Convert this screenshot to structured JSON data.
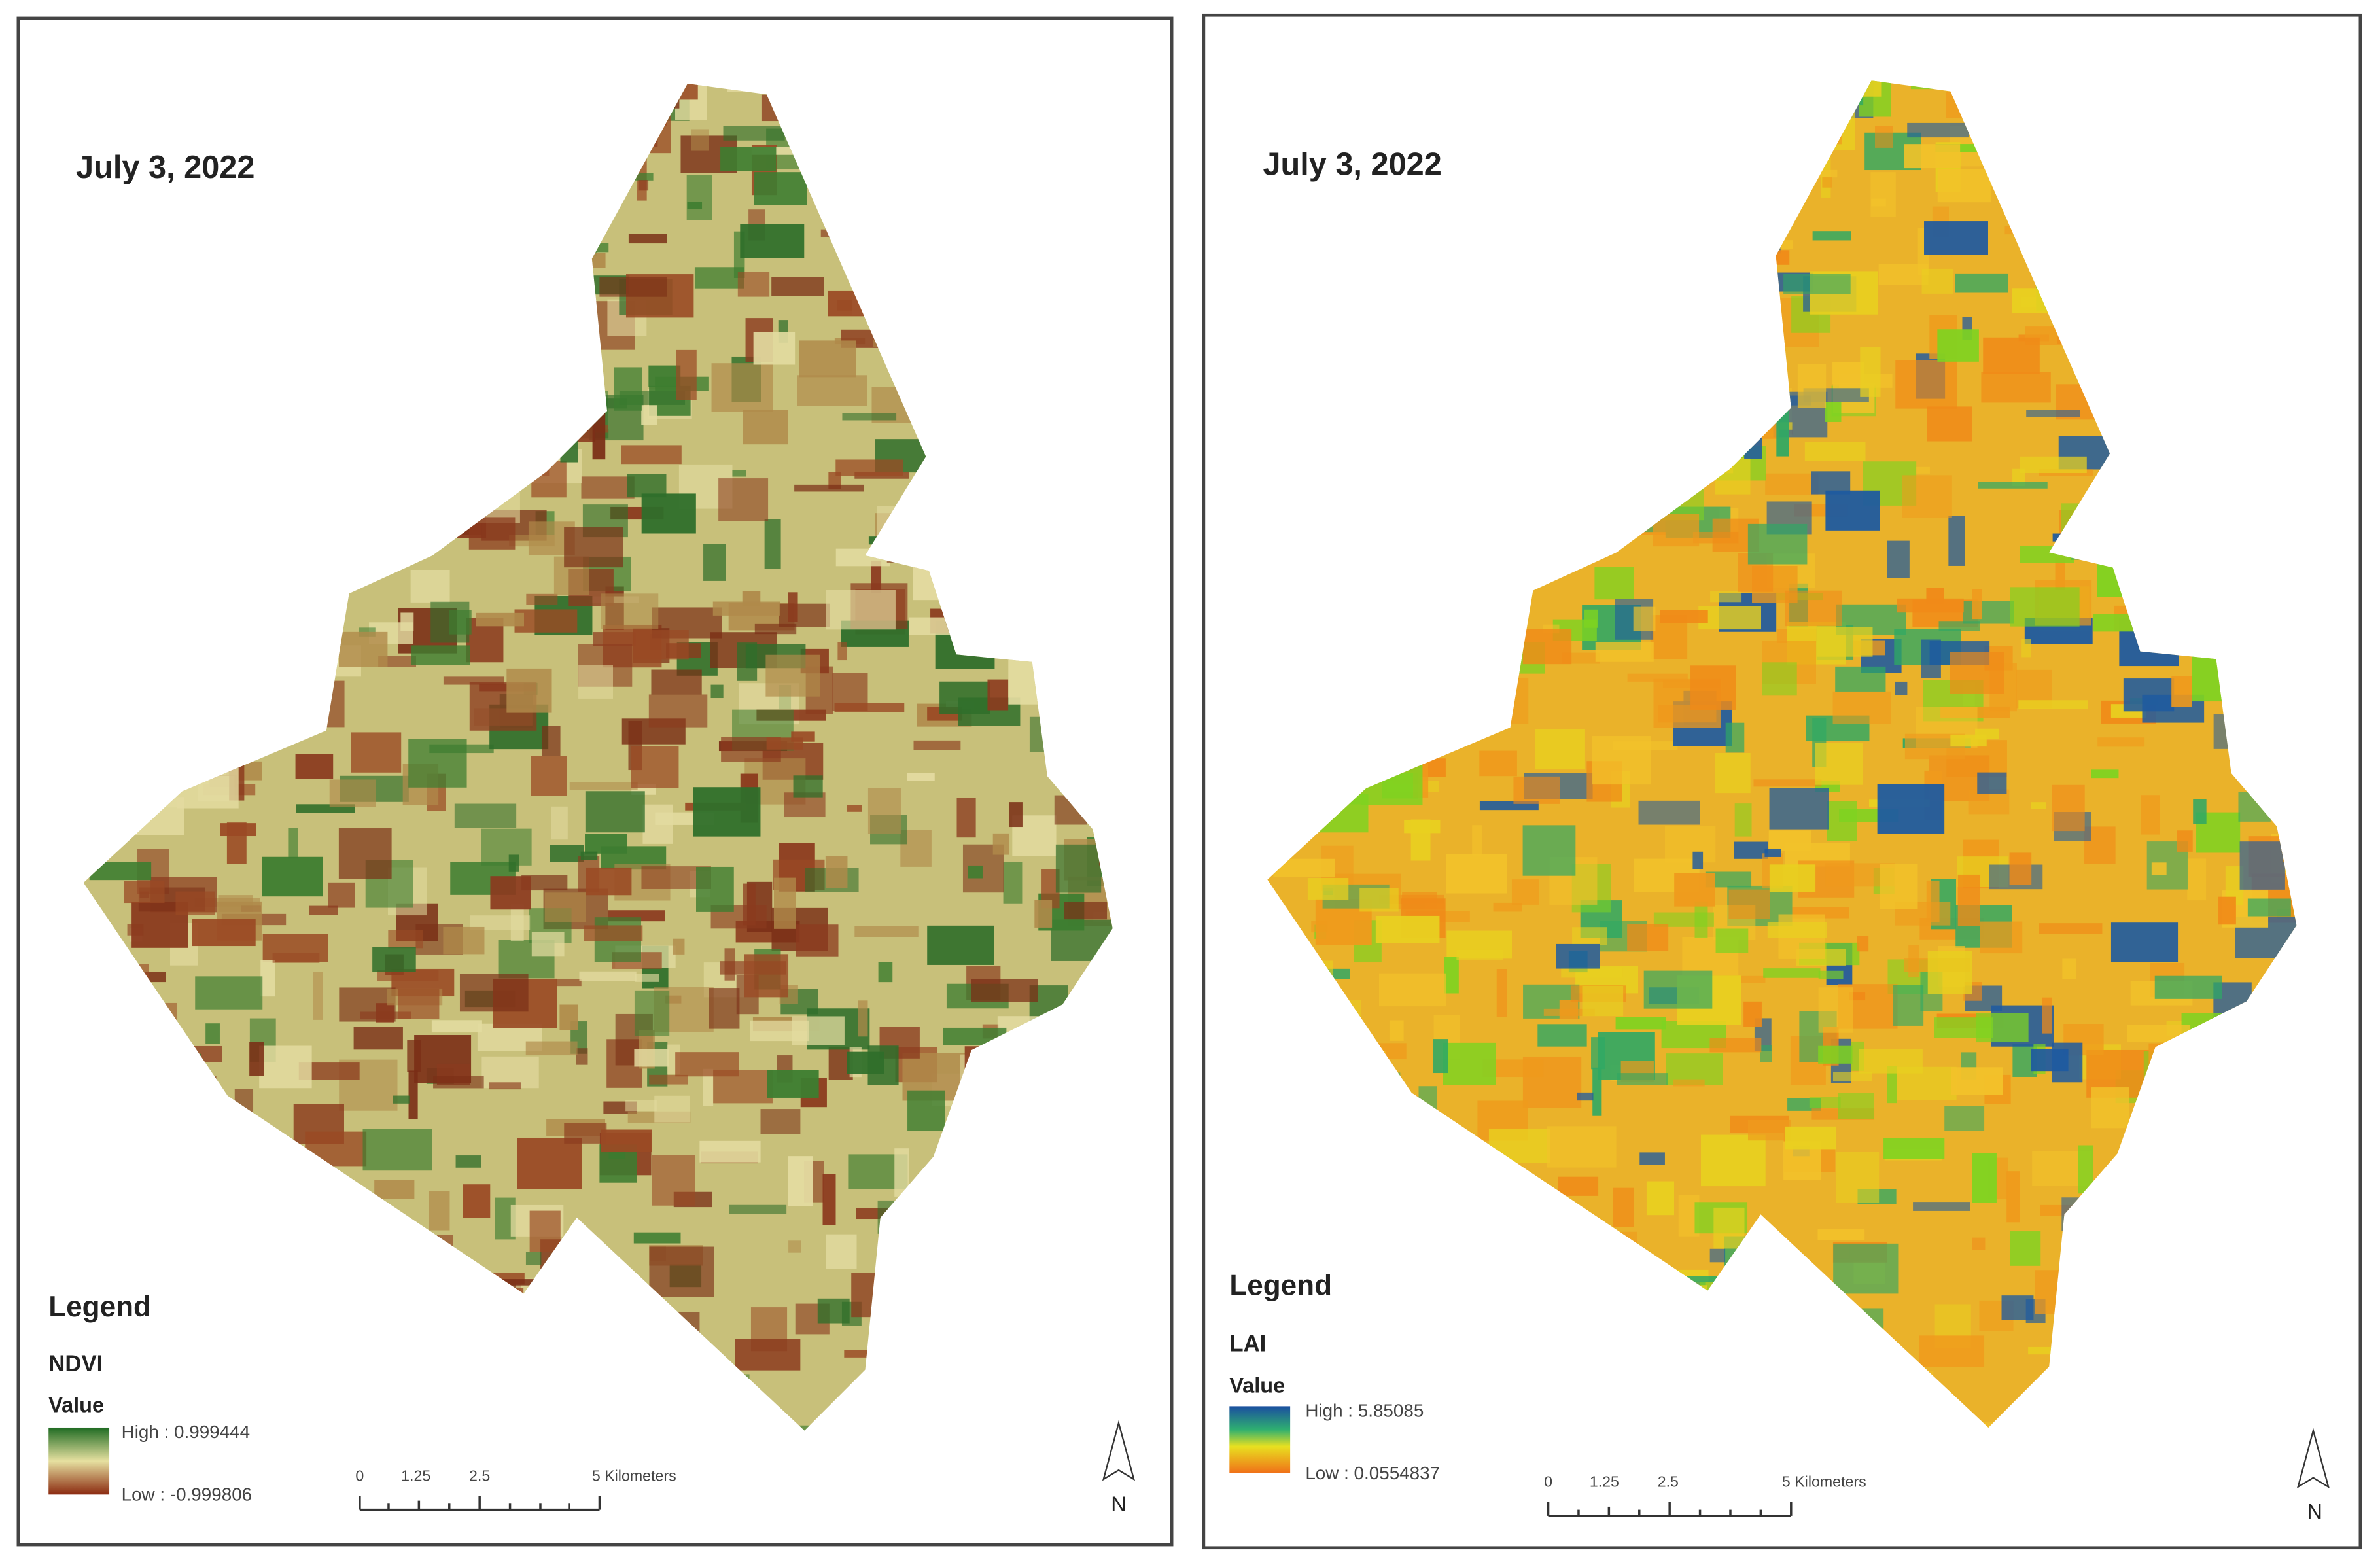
{
  "panels": [
    {
      "date": "July 3, 2022",
      "legend_title": "Legend",
      "layer": "NDVI",
      "value_label": "Value",
      "high_label": "High : 0.999444",
      "low_label": "Low : -0.999806",
      "scale_labels": [
        "0",
        "1.25",
        "2.5",
        "5 Kilometers"
      ],
      "north": "N"
    },
    {
      "date": "July 3, 2022",
      "legend_title": "Legend",
      "layer": "LAI",
      "value_label": "Value",
      "high_label": "High : 5.85085",
      "low_label": "Low : 0.0554837",
      "scale_labels": [
        "0",
        "1.25",
        "2.5",
        "5 Kilometers"
      ],
      "north": "N"
    }
  ]
}
